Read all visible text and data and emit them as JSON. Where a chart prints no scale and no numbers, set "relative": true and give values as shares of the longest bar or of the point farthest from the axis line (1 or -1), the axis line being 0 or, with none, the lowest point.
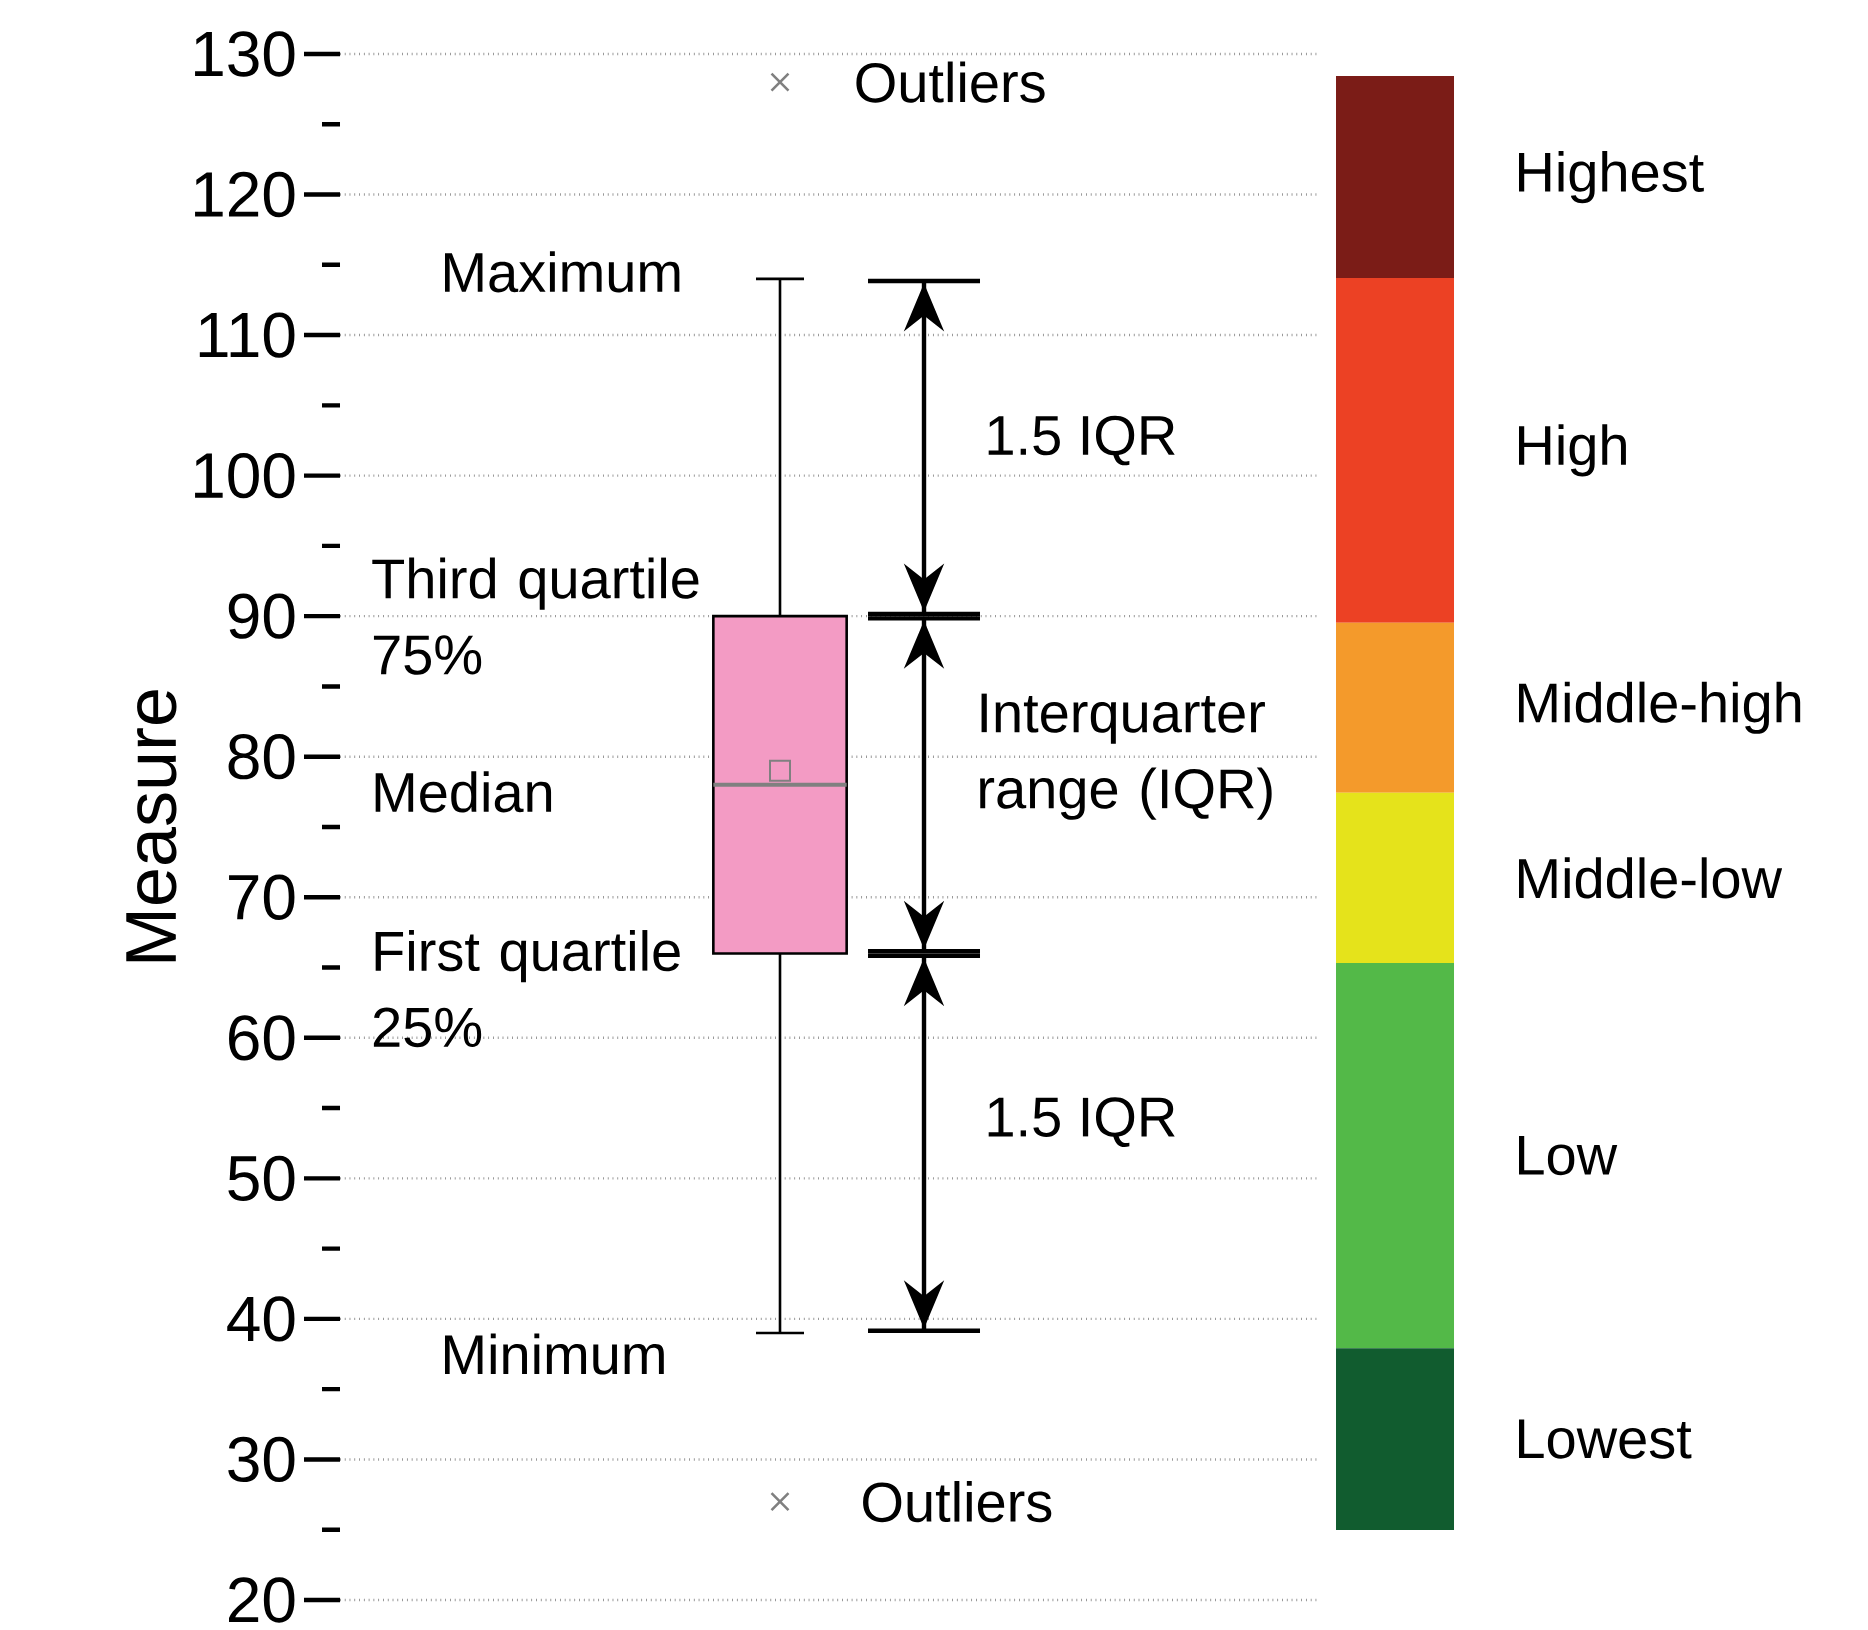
{
  "chart_data": [
    {
      "type": "box",
      "categories": [
        null
      ],
      "ylabel": "Measure",
      "ylim": [
        20,
        130
      ],
      "yticks": [
        20,
        {
          "value": 25,
          "label": null
        },
        30,
        {
          "value": 35,
          "label": null
        },
        40,
        {
          "value": 45,
          "label": null
        },
        50,
        {
          "value": 55,
          "label": null
        },
        60,
        {
          "value": 65,
          "label": null
        },
        70,
        {
          "value": 75,
          "label": null
        },
        80,
        {
          "value": 85,
          "label": null
        },
        90,
        {
          "value": 95,
          "label": null
        },
        100,
        {
          "value": 105,
          "label": null
        },
        110,
        {
          "value": 115,
          "label": null
        },
        120,
        {
          "value": 125,
          "label": null
        },
        130
      ],
      "grid": "y",
      "series": [
        {
          "color": "#f39bc4",
          "boxes": [
            {
              "low": 39,
              "q1": 66,
              "median": 78,
              "q3": 90,
              "high": 114,
              "mean": 79,
              "outliers": [
                128,
                27
              ]
            }
          ]
        }
      ],
      "annotations": [
        "Outliers",
        "Maximum",
        "Third quartile 75%",
        "Median",
        "First quartile 25%",
        "Minimum",
        "Outliers",
        "1.5 IQR",
        "Interquarter range (IQR)",
        "1.5 IQR"
      ]
    },
    {
      "type": "bar",
      "stacked": true,
      "relative": true,
      "categories": [
        null
      ],
      "series": [
        {
          "name": "Lowest",
          "color": "#115c2f",
          "values": [
            0.125
          ]
        },
        {
          "name": "Low",
          "color": "#53b948",
          "values": [
            0.265
          ]
        },
        {
          "name": "Middle-low",
          "color": "#e5e31b",
          "values": [
            0.117
          ]
        },
        {
          "name": "Middle-high",
          "color": "#f49a2b",
          "values": [
            0.117
          ]
        },
        {
          "name": "High",
          "color": "#ec4124",
          "values": [
            0.237
          ]
        },
        {
          "name": "Highest",
          "color": "#7b1c17",
          "values": [
            0.139
          ]
        }
      ]
    }
  ]
}
